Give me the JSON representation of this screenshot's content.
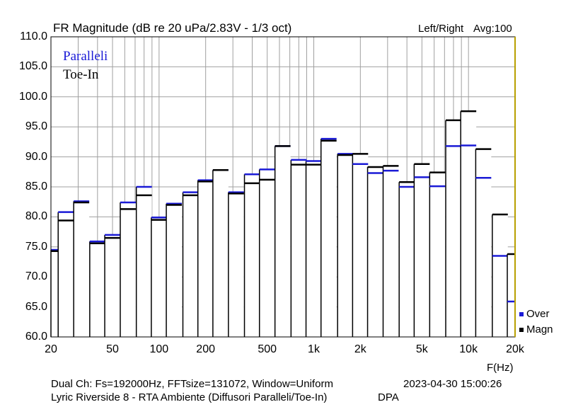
{
  "header": {
    "title": "FR Magnitude (dB re 20 uPa/2.83V - 1/3 oct)",
    "channel_info": "Left/Right",
    "avg_info": "Avg:100"
  },
  "annotations": {
    "line1": "Paralleli",
    "line2": "Toe-In"
  },
  "legend": {
    "over": "Over",
    "magn": "Magn"
  },
  "footer": {
    "settings": "Dual Ch: Fs=192000Hz, FFTsize=131072, Window=Uniform",
    "timestamp": "2023-04-30   15:00:26",
    "description": "Lyric Riverside 8 - RTA Ambiente (Diffusori Paralleli/Toe-In)",
    "tag": "DPA"
  },
  "colors": {
    "over": "#1a1ad6",
    "magn": "#000000",
    "grid": "#a0a0a0",
    "right_marker": "#b8a000"
  },
  "chart_data": {
    "type": "bar",
    "title": "FR Magnitude (dB re 20 uPa/2.83V - 1/3 oct)",
    "xlabel": "F(Hz)",
    "ylabel": "",
    "xscale": "log",
    "xlim": [
      20,
      20000
    ],
    "ylim": [
      60,
      110
    ],
    "grid": true,
    "legend_position": "bottom-right",
    "x_ticks": [
      {
        "value": 20,
        "label": "20"
      },
      {
        "value": 50,
        "label": "50"
      },
      {
        "value": 100,
        "label": "100"
      },
      {
        "value": 200,
        "label": "200"
      },
      {
        "value": 500,
        "label": "500"
      },
      {
        "value": 1000,
        "label": "1k"
      },
      {
        "value": 2000,
        "label": "2k"
      },
      {
        "value": 5000,
        "label": "5k"
      },
      {
        "value": 10000,
        "label": "10k"
      },
      {
        "value": 20000,
        "label": "20k"
      }
    ],
    "y_ticks": [
      "60.0",
      "65.0",
      "70.0",
      "75.0",
      "80.0",
      "85.0",
      "90.0",
      "95.0",
      "100.0",
      "105.0",
      "110.0"
    ],
    "bands_hz": [
      20,
      25,
      31.5,
      40,
      50,
      63,
      80,
      100,
      125,
      160,
      200,
      250,
      315,
      400,
      500,
      630,
      800,
      1000,
      1250,
      1600,
      2000,
      2500,
      3150,
      4000,
      5000,
      6300,
      8000,
      10000,
      12500,
      16000,
      20000
    ],
    "series": [
      {
        "name": "Over",
        "values": [
          74.5,
          80.8,
          82.6,
          75.9,
          77.0,
          82.4,
          85.0,
          79.9,
          82.2,
          84.1,
          86.1,
          87.8,
          84.1,
          87.1,
          87.9,
          91.8,
          89.5,
          89.3,
          93.0,
          90.5,
          88.8,
          87.3,
          87.7,
          85.0,
          86.6,
          85.1,
          91.8,
          91.9,
          86.5,
          73.5,
          65.9
        ]
      },
      {
        "name": "Magn",
        "values": [
          74.3,
          79.4,
          82.4,
          75.6,
          76.5,
          81.3,
          83.6,
          79.5,
          82.0,
          83.6,
          85.9,
          87.8,
          83.9,
          85.6,
          86.2,
          91.8,
          88.7,
          88.7,
          92.7,
          90.3,
          90.5,
          88.3,
          88.5,
          85.8,
          88.8,
          87.4,
          96.1,
          97.6,
          91.3,
          80.4,
          73.8
        ]
      }
    ]
  }
}
